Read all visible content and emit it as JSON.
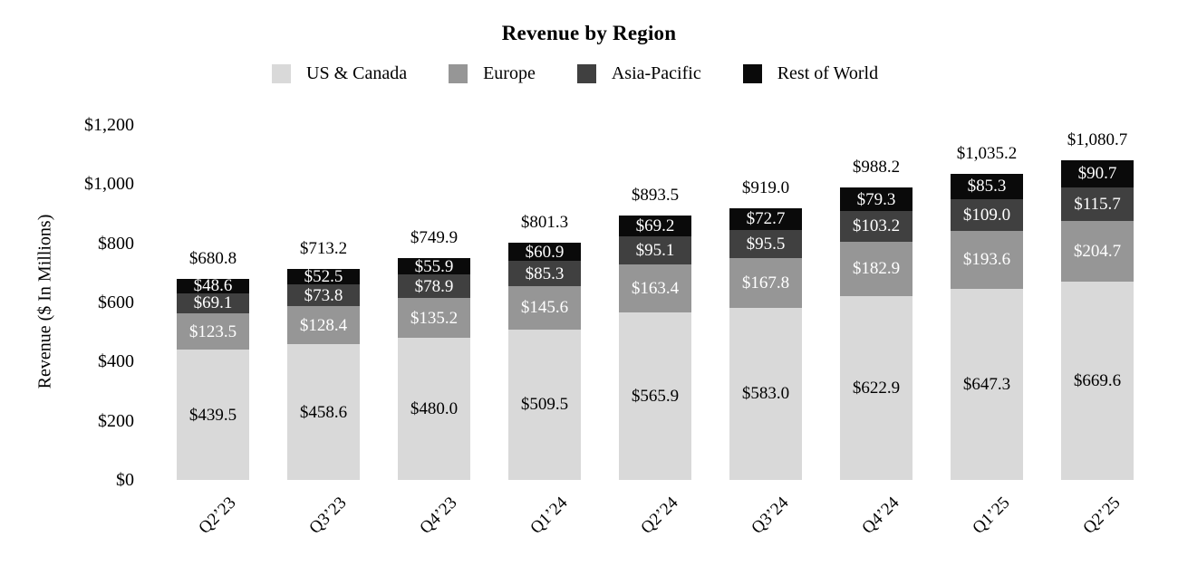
{
  "chart_data": {
    "type": "bar",
    "stacked": true,
    "title": "Revenue by Region",
    "ylabel": "Revenue ($ In Millions)",
    "xlabel": "",
    "categories": [
      "Q2’23",
      "Q3’23",
      "Q4’23",
      "Q1’24",
      "Q2’24",
      "Q3’24",
      "Q4’24",
      "Q1’25",
      "Q2’25"
    ],
    "series": [
      {
        "name": "US & Canada",
        "color": "#d9d9d9",
        "label_color": "#000000",
        "values": [
          439.5,
          458.6,
          480.0,
          509.5,
          565.9,
          583.0,
          622.9,
          647.3,
          669.6
        ]
      },
      {
        "name": "Europe",
        "color": "#969696",
        "label_color": "#ffffff",
        "values": [
          123.5,
          128.4,
          135.2,
          145.6,
          163.4,
          167.8,
          182.9,
          193.6,
          204.7
        ]
      },
      {
        "name": "Asia-Pacific",
        "color": "#404040",
        "label_color": "#ffffff",
        "values": [
          69.1,
          73.8,
          78.9,
          85.3,
          95.1,
          95.5,
          103.2,
          109.0,
          115.7
        ]
      },
      {
        "name": "Rest of World",
        "color": "#0a0a0a",
        "label_color": "#ffffff",
        "values": [
          48.6,
          52.5,
          55.9,
          60.9,
          69.2,
          72.7,
          79.3,
          85.3,
          90.7
        ]
      }
    ],
    "totals": [
      680.8,
      713.2,
      749.9,
      801.3,
      893.5,
      919.0,
      988.2,
      1035.2,
      1080.7
    ],
    "y_ticks": [
      0,
      200,
      400,
      600,
      800,
      1000,
      1200
    ],
    "ylim": [
      0,
      1200
    ],
    "grid": false,
    "axis_lines": false,
    "legend_position": "top",
    "value_prefix": "$",
    "value_decimals": 1
  },
  "colors": {
    "background": "#ffffff",
    "text": "#000000"
  }
}
